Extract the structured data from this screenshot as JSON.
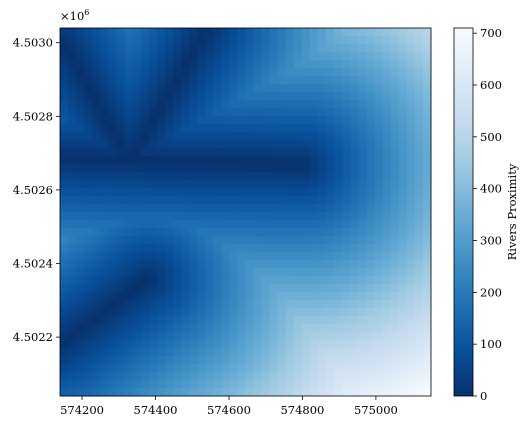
{
  "chart_data": {
    "type": "heatmap",
    "title": "",
    "xlabel": "",
    "ylabel": "",
    "xlim": [
      574140,
      575150
    ],
    "ylim": [
      4502040,
      4503040
    ],
    "x_ticks": [
      574200,
      574400,
      574600,
      574800,
      575000
    ],
    "x_tick_labels": [
      "574200",
      "574400",
      "574600",
      "574800",
      "575000"
    ],
    "y_ticks": [
      4502200,
      4502400,
      4502600,
      4502800,
      4503000
    ],
    "y_tick_labels": [
      "4.5022",
      "4.5024",
      "4.5026",
      "4.5028",
      "4.5030"
    ],
    "y_offset_label": "×10",
    "y_offset_exponent": "6",
    "grid_cols": 46,
    "grid_rows": 46,
    "colormap": "Blues_r",
    "colormap_stops": [
      "#08306b",
      "#08519c",
      "#2171b5",
      "#4292c6",
      "#6baed6",
      "#9ecae1",
      "#c6dbef",
      "#deebf7",
      "#f7fbff"
    ],
    "rivers": [
      {
        "points": [
          [
            574150,
            4503000
          ],
          [
            574330,
            4502680
          ]
        ]
      },
      {
        "points": [
          [
            574540,
            4503040
          ],
          [
            574330,
            4502680
          ]
        ]
      },
      {
        "points": [
          [
            574140,
            4502690
          ],
          [
            574330,
            4502680
          ],
          [
            574800,
            4502670
          ]
        ]
      },
      {
        "points": [
          [
            574140,
            4502180
          ],
          [
            574380,
            4502360
          ]
        ]
      }
    ],
    "value_range": [
      0,
      710
    ],
    "colorbar": {
      "label": "Rivers Proximity",
      "ticks": [
        0,
        100,
        200,
        300,
        400,
        500,
        600,
        700
      ],
      "tick_labels": [
        "0",
        "100",
        "200",
        "300",
        "400",
        "500",
        "600",
        "700"
      ]
    }
  }
}
